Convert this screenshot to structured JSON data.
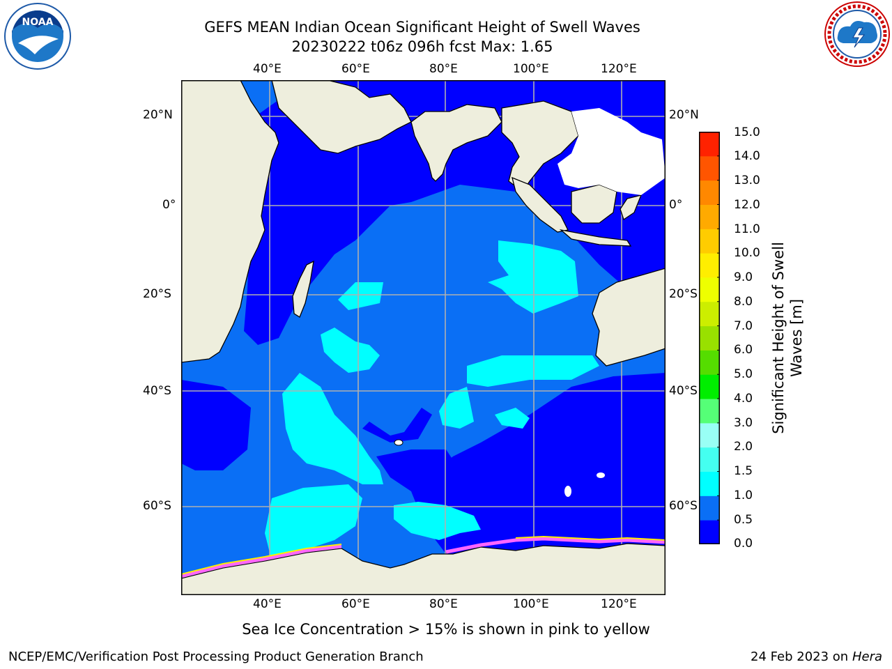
{
  "title_line1": "GEFS MEAN Indian Ocean Significant Height of Swell Waves",
  "title_line2": "20230222 t06z 096h fcst   Max: 1.65",
  "lon_labels": [
    "40°E",
    "60°E",
    "80°E",
    "100°E",
    "120°E"
  ],
  "lat_labels": [
    "20°N",
    "0°",
    "20°S",
    "40°S",
    "60°S"
  ],
  "colorbar": {
    "title_line1": "Significant Height of Swell",
    "title_line2": "Waves [m]",
    "ticks": [
      "0.0",
      "0.5",
      "1.0",
      "1.5",
      "2.0",
      "3.0",
      "4.0",
      "5.0",
      "6.0",
      "7.0",
      "8.0",
      "9.0",
      "10.0",
      "11.0",
      "12.0",
      "13.0",
      "14.0",
      "15.0"
    ],
    "colors": [
      "#0000ff",
      "#0a6ff5",
      "#00ffff",
      "#44fff0",
      "#99fff5",
      "#55ff77",
      "#00ee00",
      "#55dd00",
      "#99e000",
      "#ccee00",
      "#eeff00",
      "#ffee00",
      "#ffcc00",
      "#ffaa00",
      "#ff8800",
      "#ff5500",
      "#ff2200",
      "#ff0000"
    ]
  },
  "colors": {
    "land": "#eeeedd",
    "deep": "#0000ff",
    "mid": "#0a6ff5",
    "cyan": "#00ffff",
    "grid": "#b0b0b0",
    "ice_pink": "#ff66ff",
    "ice_yellow": "#ffee00"
  },
  "note": "Sea Ice Concentration > 15% is shown in pink to yellow",
  "footer_left": "NCEP/EMC/Verification Post Processing Product Generation Branch",
  "footer_right_date": "24 Feb 2023 on",
  "footer_right_host": "Hera",
  "logos": {
    "left": "noaa-logo",
    "right": "nws-logo"
  }
}
